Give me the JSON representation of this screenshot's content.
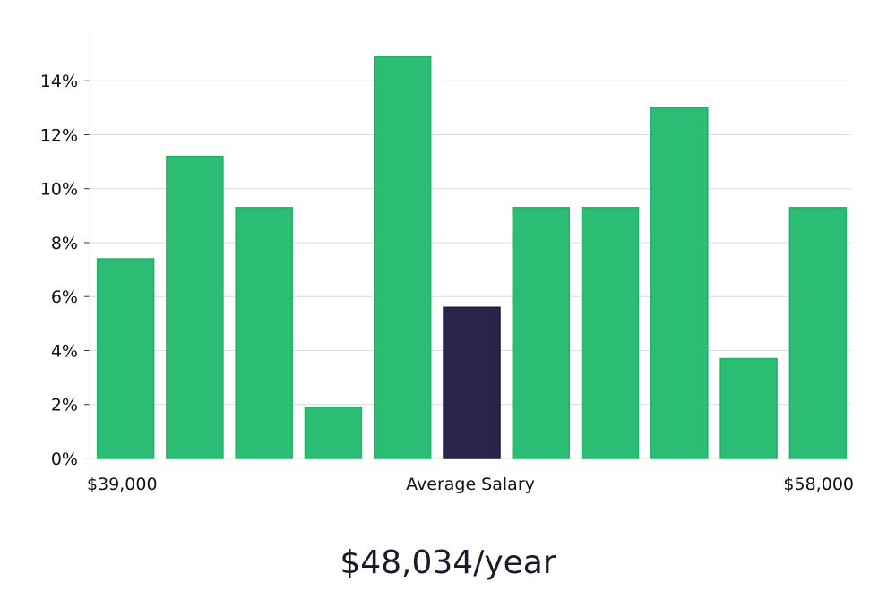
{
  "chart_data": {
    "type": "bar",
    "title": "",
    "xlabel": "Average Salary",
    "ylabel": "",
    "x_start_label": "$39,000",
    "x_end_label": "$58,000",
    "ylim": [
      0,
      15.6
    ],
    "y_ticks": [
      0,
      2,
      4,
      6,
      8,
      10,
      12,
      14
    ],
    "y_tick_labels": [
      "0%",
      "2%",
      "4%",
      "6%",
      "8%",
      "10%",
      "12%",
      "14%"
    ],
    "values": [
      7.4,
      11.2,
      9.3,
      1.9,
      14.9,
      5.6,
      9.3,
      9.3,
      13.0,
      3.7,
      9.3
    ],
    "highlight_index": 5,
    "grid": true,
    "colors": {
      "bar": "#2abd73",
      "bar_edge": "#22b06a",
      "highlight": "#28244a",
      "highlight_edge": "#1c1838",
      "grid": "#dcdcdc",
      "axis": "#e4e4e4",
      "text": "#111111"
    }
  },
  "salary": {
    "display": "$48,034/year"
  }
}
